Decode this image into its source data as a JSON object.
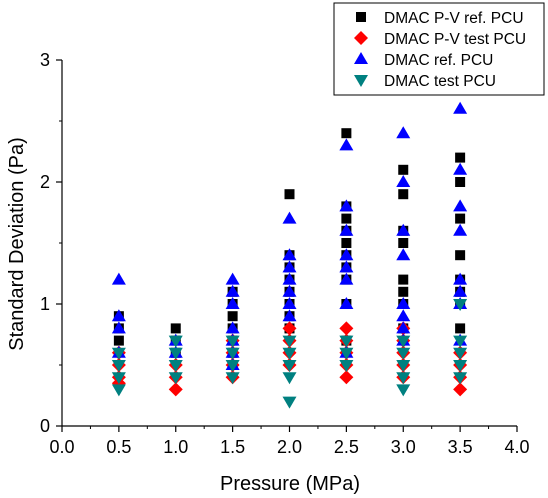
{
  "chart_data": {
    "type": "scatter",
    "xlabel": "Pressure (MPa)",
    "ylabel": "Standard Deviation (Pa)",
    "xlim": [
      0.0,
      4.0
    ],
    "ylim": [
      0,
      3
    ],
    "x_ticks": [
      "0.0",
      "0.5",
      "1.0",
      "1.5",
      "2.0",
      "2.5",
      "3.0",
      "3.5",
      "4.0"
    ],
    "y_ticks": [
      "0",
      "1",
      "2",
      "3"
    ],
    "legend_position": "top-right",
    "series": [
      {
        "name": "DMAC P-V ref. PCU",
        "marker": "square",
        "color": "#000000",
        "points": [
          [
            0.5,
            0.7
          ],
          [
            0.5,
            0.8
          ],
          [
            0.5,
            0.9
          ],
          [
            1.0,
            0.8
          ],
          [
            1.0,
            0.7
          ],
          [
            1.0,
            0.6
          ],
          [
            1.5,
            0.9
          ],
          [
            1.5,
            1.0
          ],
          [
            1.5,
            1.1
          ],
          [
            1.5,
            0.8
          ],
          [
            1.5,
            0.7
          ],
          [
            1.5,
            0.6
          ],
          [
            2.0,
            1.9
          ],
          [
            2.0,
            1.4
          ],
          [
            2.0,
            1.3
          ],
          [
            2.0,
            1.2
          ],
          [
            2.0,
            1.1
          ],
          [
            2.0,
            1.0
          ],
          [
            2.0,
            0.9
          ],
          [
            2.0,
            0.8
          ],
          [
            2.5,
            2.4
          ],
          [
            2.5,
            1.8
          ],
          [
            2.5,
            1.7
          ],
          [
            2.5,
            1.6
          ],
          [
            2.5,
            1.5
          ],
          [
            2.5,
            1.4
          ],
          [
            2.5,
            1.3
          ],
          [
            2.5,
            1.2
          ],
          [
            2.5,
            1.0
          ],
          [
            2.5,
            0.7
          ],
          [
            3.0,
            2.1
          ],
          [
            3.0,
            1.9
          ],
          [
            3.0,
            1.6
          ],
          [
            3.0,
            1.5
          ],
          [
            3.0,
            1.2
          ],
          [
            3.0,
            1.1
          ],
          [
            3.0,
            1.0
          ],
          [
            3.0,
            0.8
          ],
          [
            3.5,
            2.2
          ],
          [
            3.5,
            2.0
          ],
          [
            3.5,
            1.7
          ],
          [
            3.5,
            1.4
          ],
          [
            3.5,
            1.2
          ],
          [
            3.5,
            1.1
          ],
          [
            3.5,
            1.0
          ],
          [
            3.5,
            0.8
          ]
        ]
      },
      {
        "name": "DMAC P-V test PCU",
        "marker": "diamond",
        "color": "#ff0000",
        "points": [
          [
            0.5,
            0.6
          ],
          [
            0.5,
            0.5
          ],
          [
            0.5,
            0.4
          ],
          [
            0.5,
            0.35
          ],
          [
            1.0,
            0.5
          ],
          [
            1.0,
            0.4
          ],
          [
            1.0,
            0.3
          ],
          [
            1.5,
            0.7
          ],
          [
            1.5,
            0.6
          ],
          [
            1.5,
            0.5
          ],
          [
            1.5,
            0.4
          ],
          [
            2.0,
            0.8
          ],
          [
            2.0,
            0.7
          ],
          [
            2.0,
            0.6
          ],
          [
            2.0,
            0.5
          ],
          [
            2.5,
            0.8
          ],
          [
            2.5,
            0.7
          ],
          [
            2.5,
            0.6
          ],
          [
            2.5,
            0.5
          ],
          [
            2.5,
            0.4
          ],
          [
            3.0,
            0.8
          ],
          [
            3.0,
            0.7
          ],
          [
            3.0,
            0.6
          ],
          [
            3.0,
            0.5
          ],
          [
            3.0,
            0.4
          ],
          [
            3.5,
            0.6
          ],
          [
            3.5,
            0.5
          ],
          [
            3.5,
            0.4
          ],
          [
            3.5,
            0.3
          ]
        ]
      },
      {
        "name": "DMAC ref. PCU",
        "marker": "triangle-up",
        "color": "#0000ff",
        "points": [
          [
            0.5,
            1.2
          ],
          [
            0.5,
            0.9
          ],
          [
            0.5,
            0.8
          ],
          [
            0.5,
            0.6
          ],
          [
            1.0,
            0.7
          ],
          [
            1.0,
            0.6
          ],
          [
            1.5,
            1.2
          ],
          [
            1.5,
            1.1
          ],
          [
            1.5,
            1.0
          ],
          [
            1.5,
            0.8
          ],
          [
            1.5,
            0.7
          ],
          [
            1.5,
            0.6
          ],
          [
            1.5,
            0.5
          ],
          [
            2.0,
            1.7
          ],
          [
            2.0,
            1.4
          ],
          [
            2.0,
            1.3
          ],
          [
            2.0,
            1.2
          ],
          [
            2.0,
            1.1
          ],
          [
            2.0,
            1.0
          ],
          [
            2.0,
            0.9
          ],
          [
            2.5,
            2.3
          ],
          [
            2.5,
            1.8
          ],
          [
            2.5,
            1.6
          ],
          [
            2.5,
            1.4
          ],
          [
            2.5,
            1.3
          ],
          [
            2.5,
            1.2
          ],
          [
            2.5,
            1.0
          ],
          [
            2.5,
            0.6
          ],
          [
            3.0,
            2.4
          ],
          [
            3.0,
            2.0
          ],
          [
            3.0,
            1.6
          ],
          [
            3.0,
            1.4
          ],
          [
            3.0,
            1.0
          ],
          [
            3.0,
            0.9
          ],
          [
            3.0,
            0.8
          ],
          [
            3.0,
            0.7
          ],
          [
            3.5,
            2.6
          ],
          [
            3.5,
            2.1
          ],
          [
            3.5,
            1.8
          ],
          [
            3.5,
            1.6
          ],
          [
            3.5,
            1.2
          ],
          [
            3.5,
            1.1
          ],
          [
            3.5,
            1.0
          ],
          [
            3.5,
            0.7
          ]
        ]
      },
      {
        "name": "DMAC test PCU",
        "marker": "triangle-down",
        "color": "#008080",
        "points": [
          [
            0.5,
            0.6
          ],
          [
            0.5,
            0.5
          ],
          [
            0.5,
            0.4
          ],
          [
            0.5,
            0.3
          ],
          [
            1.0,
            0.7
          ],
          [
            1.0,
            0.6
          ],
          [
            1.0,
            0.5
          ],
          [
            1.0,
            0.4
          ],
          [
            1.5,
            0.7
          ],
          [
            1.5,
            0.6
          ],
          [
            1.5,
            0.5
          ],
          [
            1.5,
            0.4
          ],
          [
            2.0,
            0.7
          ],
          [
            2.0,
            0.6
          ],
          [
            2.0,
            0.5
          ],
          [
            2.0,
            0.4
          ],
          [
            2.0,
            0.2
          ],
          [
            2.5,
            0.7
          ],
          [
            2.5,
            0.6
          ],
          [
            2.5,
            0.5
          ],
          [
            3.0,
            0.7
          ],
          [
            3.0,
            0.6
          ],
          [
            3.0,
            0.5
          ],
          [
            3.0,
            0.4
          ],
          [
            3.0,
            0.3
          ],
          [
            3.5,
            1.0
          ],
          [
            3.5,
            0.7
          ],
          [
            3.5,
            0.6
          ],
          [
            3.5,
            0.5
          ],
          [
            3.5,
            0.4
          ]
        ]
      }
    ]
  }
}
